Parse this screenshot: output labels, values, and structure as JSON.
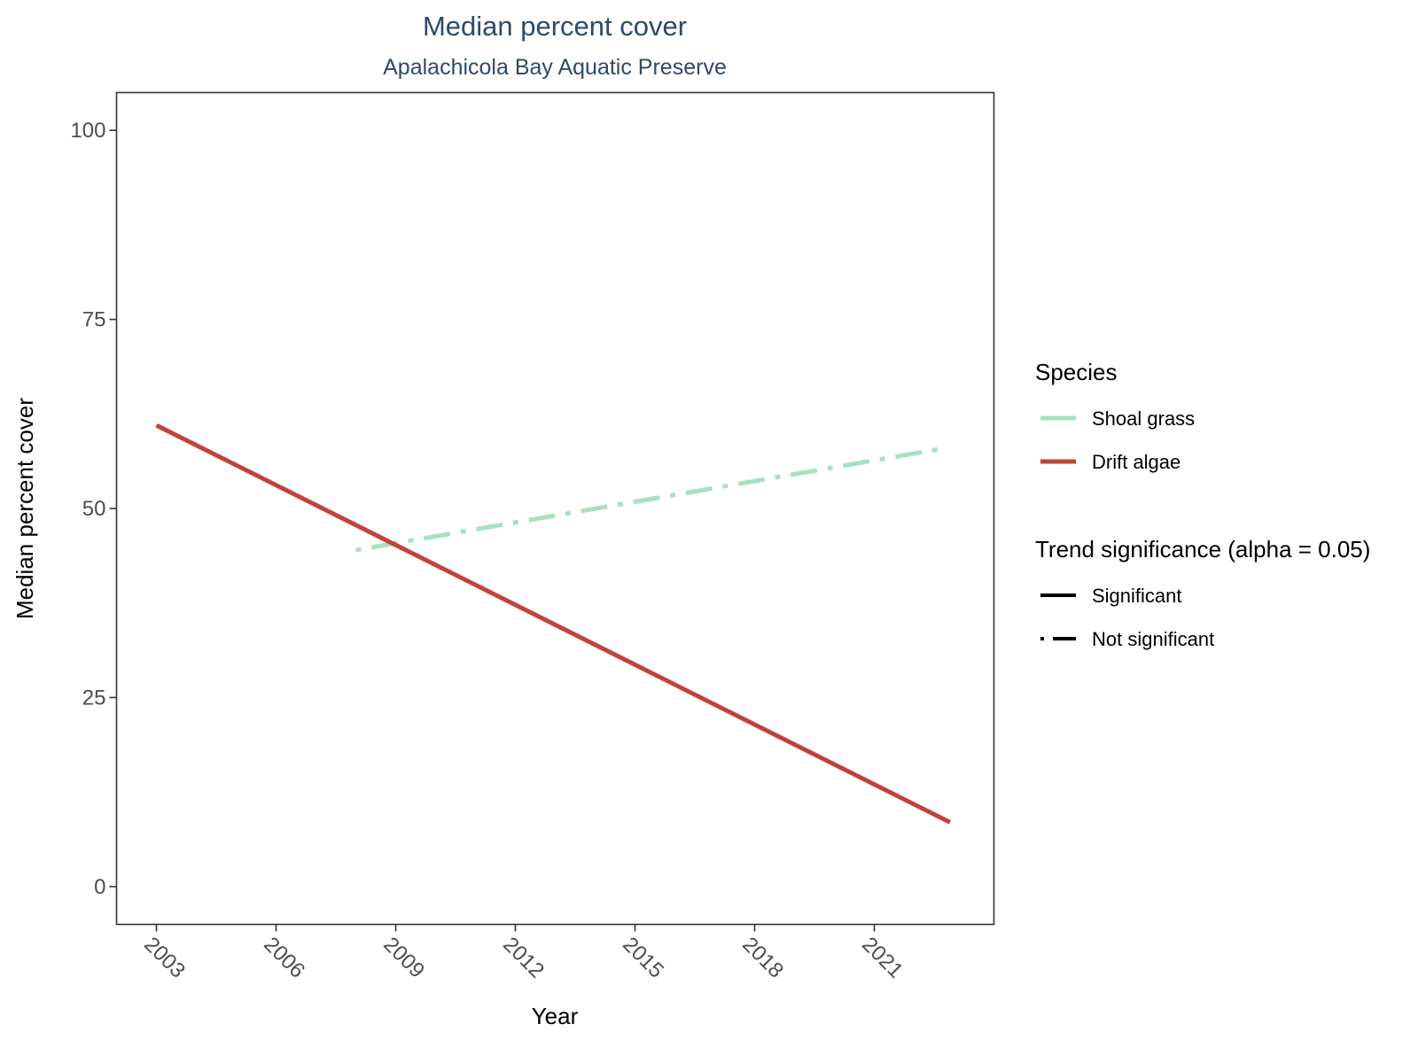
{
  "chart_data": {
    "type": "line",
    "title": "Median percent cover",
    "subtitle": "Apalachicola Bay Aquatic Preserve",
    "xlabel": "Year",
    "ylabel": "Median percent cover",
    "xlim": [
      2002.0,
      2024.0
    ],
    "ylim": [
      -5,
      105
    ],
    "x_ticks": [
      2003,
      2006,
      2009,
      2012,
      2015,
      2018,
      2021
    ],
    "y_ticks": [
      0,
      25,
      50,
      75,
      100
    ],
    "grid": false,
    "series": [
      {
        "name": "Shoal grass",
        "color": "#a8e0c0",
        "linestyle": "dashed",
        "significance": "Not significant",
        "x": [
          2008.0,
          2022.8
        ],
        "y": [
          44.5,
          58.0
        ]
      },
      {
        "name": "Drift algae",
        "color": "#c0443a",
        "linestyle": "solid",
        "significance": "Significant",
        "x": [
          2003.0,
          2022.9
        ],
        "y": [
          61.0,
          8.5
        ]
      }
    ],
    "legend": {
      "placement": "right",
      "species_title": "Species",
      "species": [
        {
          "label": "Shoal grass",
          "color": "#a8e0c0"
        },
        {
          "label": "Drift algae",
          "color": "#c0443a"
        }
      ],
      "trend_title": "Trend significance (alpha = 0.05)",
      "trend": [
        {
          "label": "Significant",
          "linestyle": "solid",
          "color": "#000000"
        },
        {
          "label": "Not significant",
          "linestyle": "dashed",
          "color": "#000000"
        }
      ]
    }
  }
}
